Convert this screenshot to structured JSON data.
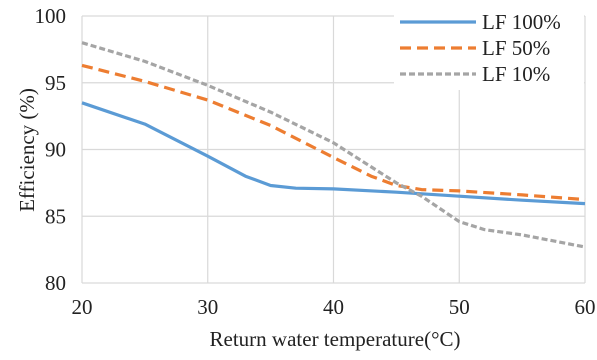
{
  "chart_data": {
    "type": "line",
    "title": "",
    "xlabel": "Return water temperature(°C)",
    "ylabel": "Efficiency (%)",
    "xlim": [
      20,
      60
    ],
    "ylim": [
      80,
      100
    ],
    "x_ticks": [
      20,
      30,
      40,
      50,
      60
    ],
    "y_ticks": [
      80,
      85,
      90,
      95,
      100
    ],
    "grid": true,
    "legend_position": "top-right",
    "series": [
      {
        "name": "LF 100%",
        "color": "#5B9BD5",
        "dash": "solid",
        "points": [
          [
            20,
            93.5
          ],
          [
            25,
            91.9
          ],
          [
            30,
            89.5
          ],
          [
            33,
            88.0
          ],
          [
            35,
            87.3
          ],
          [
            37,
            87.1
          ],
          [
            40,
            87.05
          ],
          [
            45,
            86.8
          ],
          [
            50,
            86.5
          ],
          [
            55,
            86.2
          ],
          [
            60,
            85.95
          ]
        ]
      },
      {
        "name": "LF 50%",
        "color": "#ED7D31",
        "dash": "dashed",
        "points": [
          [
            20,
            96.3
          ],
          [
            25,
            95.1
          ],
          [
            30,
            93.7
          ],
          [
            35,
            91.8
          ],
          [
            40,
            89.4
          ],
          [
            43,
            88.0
          ],
          [
            45,
            87.3
          ],
          [
            47,
            87.0
          ],
          [
            50,
            86.9
          ],
          [
            55,
            86.6
          ],
          [
            60,
            86.25
          ]
        ]
      },
      {
        "name": "LF 10%",
        "color": "#A5A5A5",
        "dash": "dashed",
        "points": [
          [
            20,
            98.0
          ],
          [
            25,
            96.6
          ],
          [
            30,
            94.8
          ],
          [
            35,
            92.8
          ],
          [
            40,
            90.5
          ],
          [
            43,
            88.7
          ],
          [
            45,
            87.5
          ],
          [
            47,
            86.5
          ],
          [
            50,
            84.6
          ],
          [
            52,
            84.0
          ],
          [
            55,
            83.6
          ],
          [
            60,
            82.7
          ]
        ]
      }
    ]
  }
}
